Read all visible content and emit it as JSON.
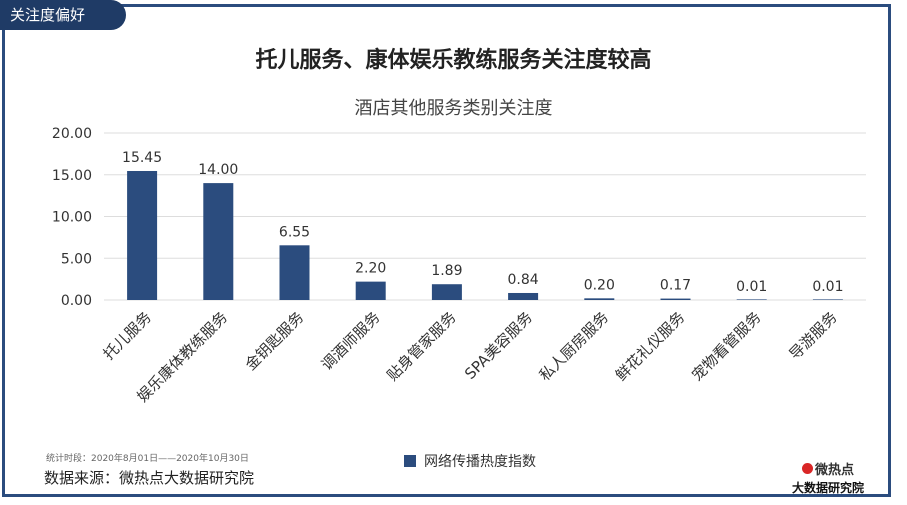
{
  "header": {
    "tag": "关注度偏好",
    "headline": "托儿服务、康体娱乐教练服务关注度较高"
  },
  "chart_data": {
    "type": "bar",
    "title": "酒店其他服务类别关注度",
    "categories": [
      "托儿服务",
      "娱乐康体教练服务",
      "金钥匙服务",
      "调酒师服务",
      "贴身管家服务",
      "SPA美容服务",
      "私人厨房服务",
      "鲜花礼仪服务",
      "宠物看管服务",
      "导游服务"
    ],
    "series": [
      {
        "name": "网络传播热度指数",
        "values": [
          15.45,
          14.0,
          6.55,
          2.2,
          1.89,
          0.84,
          0.2,
          0.17,
          0.01,
          0.01
        ]
      }
    ],
    "value_labels": [
      "15.45",
      "14.00",
      "6.55",
      "2.20",
      "1.89",
      "0.84",
      "0.20",
      "0.17",
      "0.01",
      "0.01"
    ],
    "yticks": [
      "0.00",
      "5.00",
      "10.00",
      "15.00",
      "20.00"
    ],
    "ylim": [
      0,
      20
    ],
    "grid": true,
    "legend_position": "bottom",
    "bar_color": "#2b4c7e"
  },
  "footer": {
    "period": "统计时段：2020年8月01日——2020年10月30日",
    "source": "数据来源：微热点大数据研究院",
    "logo_top": "微热点",
    "logo_bottom": "大数据研究院"
  }
}
